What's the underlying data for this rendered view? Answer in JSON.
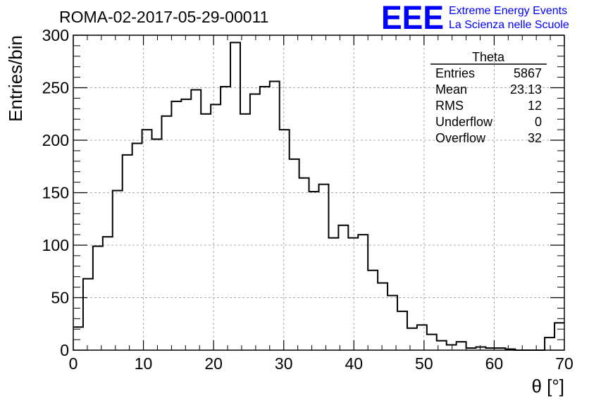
{
  "header": {
    "run_title": "ROMA-02-2017-05-29-00011",
    "logo_text": "EEE",
    "logo_line1": "Extreme Energy Events",
    "logo_line2": "La Scienza nelle Scuole",
    "logo_color": "#0000ff"
  },
  "stats": {
    "title": "Theta",
    "rows": [
      {
        "label": "Entries",
        "value": "5867"
      },
      {
        "label": "Mean",
        "value": "23.13"
      },
      {
        "label": "RMS",
        "value": "12"
      },
      {
        "label": "Underflow",
        "value": "0"
      },
      {
        "label": "Overflow",
        "value": "32"
      }
    ]
  },
  "chart_data": {
    "type": "bar",
    "style": "step-histogram",
    "title": "ROMA-02-2017-05-29-00011",
    "xlabel": "θ [°]",
    "ylabel": "Entries/bin",
    "xlim": [
      0,
      70
    ],
    "ylim": [
      0,
      300
    ],
    "grid": true,
    "bin_width": 1.4,
    "bin_start": 0,
    "x_ticks": [
      0,
      10,
      20,
      30,
      40,
      50,
      60,
      70
    ],
    "y_ticks": [
      0,
      50,
      100,
      150,
      200,
      250,
      300
    ],
    "values": [
      22,
      68,
      99,
      108,
      152,
      186,
      197,
      210,
      201,
      223,
      237,
      239,
      248,
      225,
      234,
      251,
      293,
      225,
      244,
      251,
      256,
      210,
      182,
      164,
      151,
      158,
      107,
      119,
      107,
      110,
      76,
      64,
      52,
      37,
      21,
      24,
      15,
      9,
      5,
      8,
      2,
      3,
      2,
      2,
      1,
      0,
      0,
      0,
      12,
      26
    ],
    "line_color": "#000000",
    "grid_color": "#aaaaaa"
  }
}
